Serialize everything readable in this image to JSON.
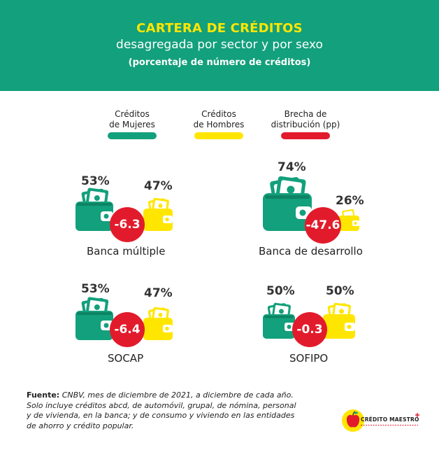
{
  "header": {
    "title": "CARTERA DE CRÉDITOS",
    "subtitle": "desagregada por sector y por sexo",
    "unit": "(porcentaje de número de créditos)"
  },
  "legend": [
    {
      "label_line1": "Créditos",
      "label_line2": "de Mujeres",
      "color": "#13a07c"
    },
    {
      "label_line1": "Créditos",
      "label_line2": "de Hombres",
      "color": "#ffe600"
    },
    {
      "label_line1": "Brecha de",
      "label_line2": "distribución (pp)",
      "color": "#e21b2c"
    }
  ],
  "chart_data": {
    "type": "table",
    "unit": "porcentaje de número de créditos",
    "columns": [
      "Créditos de Mujeres",
      "Créditos de Hombres",
      "Brecha de distribución (pp)"
    ],
    "rows": [
      {
        "sector": "Banca múltiple",
        "mujeres": "53%",
        "hombres": "47%",
        "brecha": "-6.3"
      },
      {
        "sector": "Banca de desarrollo",
        "mujeres": "74%",
        "hombres": "26%",
        "brecha": "-47.6"
      },
      {
        "sector": "SOCAP",
        "mujeres": "53%",
        "hombres": "47%",
        "brecha": "-6.4"
      },
      {
        "sector": "SOFIPO",
        "mujeres": "50%",
        "hombres": "50%",
        "brecha": "-0.3"
      }
    ]
  },
  "footnote": {
    "label": "Fuente:",
    "text": " CNBV, mes de diciembre de 2021, a diciembre de cada año.",
    "note": "Solo incluye créditos abcd, de automóvil, grupal, de nómina, personal y de vivienda, en la banca; y de consumo y viviendo en las entidades de ahorro y crédito popular."
  },
  "logo": {
    "text": "CRÉDITO MAESTRO"
  },
  "colors": {
    "green": "#13a07c",
    "yellow": "#ffe600",
    "red": "#e21b2c"
  }
}
